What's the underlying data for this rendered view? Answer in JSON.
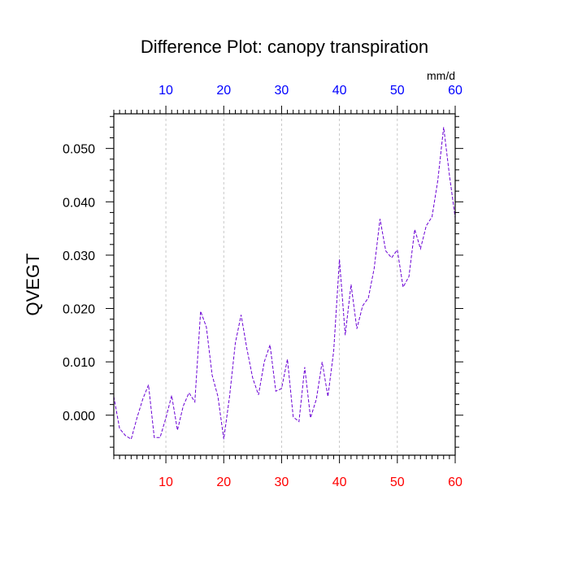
{
  "chart_data": {
    "type": "line",
    "title": "Difference Plot: canopy transpiration",
    "ylabel": "QVEGT",
    "units": "mm/d",
    "xlim": [
      1,
      60
    ],
    "ylim": [
      -0.0075,
      0.0565
    ],
    "x_ticks": [
      "10",
      "20",
      "30",
      "40",
      "50",
      "60"
    ],
    "x_tick_values": [
      10,
      20,
      30,
      40,
      50,
      60
    ],
    "y_ticks": [
      "0.000",
      "0.010",
      "0.020",
      "0.030",
      "0.040",
      "0.050"
    ],
    "y_tick_values": [
      0.0,
      0.01,
      0.02,
      0.03,
      0.04,
      0.05
    ],
    "grid": "vertical dashed at x ticks",
    "colors": {
      "line": "#6a00d4",
      "bottom_ticks": "#ff0000",
      "top_ticks": "#0000ff",
      "grid": "#bbbbbb"
    },
    "series": [
      {
        "x": [
          1,
          2,
          3,
          4,
          5,
          6,
          7,
          8,
          9,
          10,
          11,
          12,
          13,
          14,
          15,
          16,
          17,
          18,
          19,
          20,
          21,
          22,
          23,
          24,
          25,
          26,
          27,
          28,
          29,
          30,
          31,
          32,
          33,
          34,
          35,
          36,
          37,
          38,
          39,
          40,
          41,
          42,
          43,
          44,
          45,
          46,
          47,
          48,
          49,
          50,
          51,
          52,
          53,
          54,
          55,
          56,
          57,
          58,
          59,
          60
        ],
        "values": [
          0.0035,
          -0.0025,
          -0.0038,
          -0.0045,
          -0.0005,
          0.003,
          0.0057,
          -0.0042,
          -0.0042,
          -0.0005,
          0.0037,
          -0.0028,
          0.0017,
          0.0042,
          0.0025,
          0.0195,
          0.0165,
          0.0075,
          0.0035,
          -0.0045,
          0.0035,
          0.0135,
          0.0188,
          0.0125,
          0.007,
          0.0038,
          0.01,
          0.0132,
          0.0045,
          0.005,
          0.0105,
          -0.0003,
          -0.0012,
          0.009,
          -0.0005,
          0.003,
          0.01,
          0.0035,
          0.012,
          0.0292,
          0.015,
          0.0245,
          0.0162,
          0.0205,
          0.022,
          0.0275,
          0.0368,
          0.0308,
          0.0295,
          0.031,
          0.024,
          0.026,
          0.0348,
          0.0312,
          0.0355,
          0.0372,
          0.044,
          0.054,
          0.045,
          0.037
        ]
      }
    ]
  }
}
